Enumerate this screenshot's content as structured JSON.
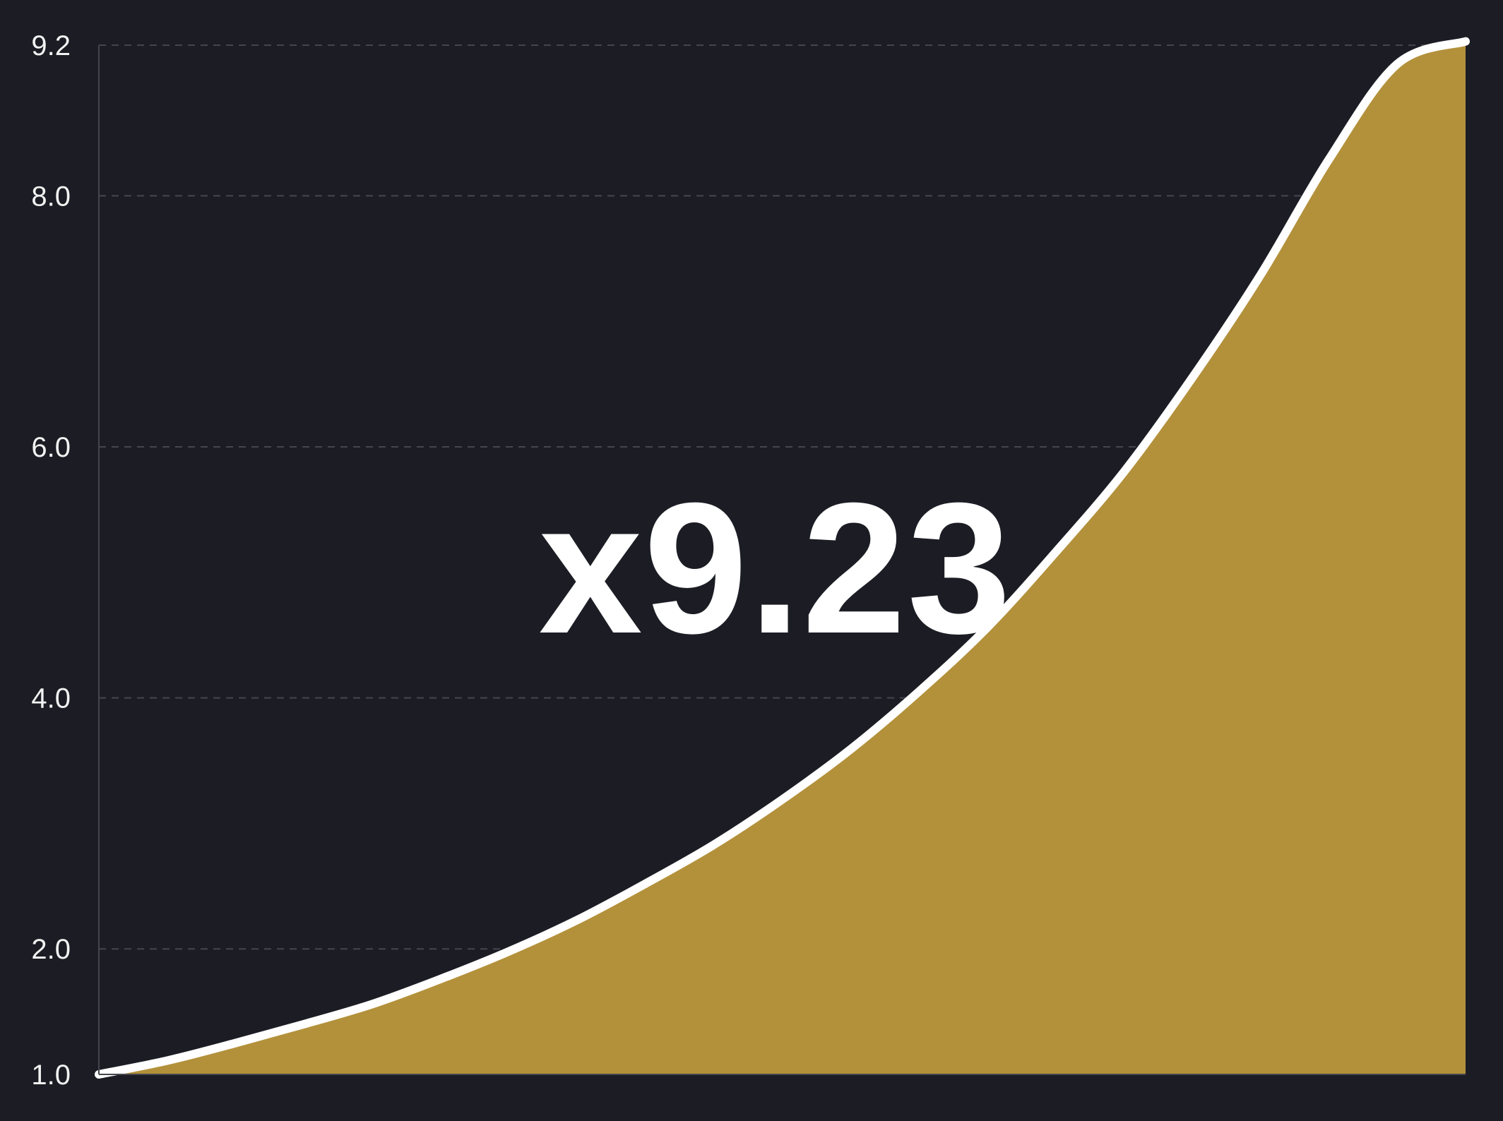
{
  "multiplier_label": "x9.23",
  "colors": {
    "background": "#1c1d24",
    "area_fill": "#b3913b",
    "line": "#ffffff",
    "grid": "#45464d",
    "axis": "#45464d",
    "tick_text": "#f2f2f2"
  },
  "chart_data": {
    "type": "area",
    "title": "",
    "xlabel": "",
    "ylabel": "",
    "ylim": [
      1.0,
      9.2
    ],
    "yticks": [
      {
        "value": 9.2,
        "label": "9.2"
      },
      {
        "value": 8.0,
        "label": "8.0"
      },
      {
        "value": 6.0,
        "label": "6.0"
      },
      {
        "value": 4.0,
        "label": "4.0"
      },
      {
        "value": 2.0,
        "label": "2.0"
      },
      {
        "value": 1.0,
        "label": "1.0"
      }
    ],
    "grid": true,
    "x": [
      0,
      0.05,
      0.1,
      0.15,
      0.2,
      0.25,
      0.3,
      0.35,
      0.4,
      0.45,
      0.5,
      0.55,
      0.6,
      0.65,
      0.7,
      0.75,
      0.8,
      0.85,
      0.9,
      0.95,
      1.0
    ],
    "series": [
      {
        "values": [
          1.0,
          1.11,
          1.25,
          1.4,
          1.56,
          1.76,
          1.98,
          2.23,
          2.52,
          2.83,
          3.19,
          3.59,
          4.05,
          4.56,
          5.16,
          5.8,
          6.55,
          7.37,
          8.29,
          9.05,
          9.23
        ]
      }
    ],
    "current_value": 9.23
  }
}
